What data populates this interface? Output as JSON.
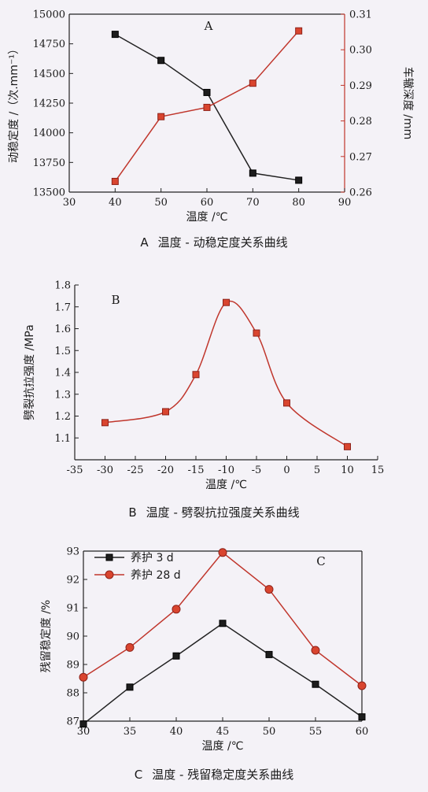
{
  "chart_data": [
    {
      "type": "line",
      "panel_letter": "A",
      "caption": "温度 - 动稳定度关系曲线",
      "xlabel": "温度 /℃",
      "ylabel": "动稳定度 /（次.mm⁻¹）",
      "y2label": "车辙深度 /mm",
      "x": [
        40,
        50,
        60,
        70,
        80
      ],
      "xlim": [
        30,
        90
      ],
      "xticks": [
        "30",
        "40",
        "50",
        "60",
        "70",
        "80",
        "90"
      ],
      "ylim": [
        13500,
        15000
      ],
      "yticks": [
        "13500",
        "13750",
        "14000",
        "14250",
        "14500",
        "14750",
        "15000"
      ],
      "y2lim": [
        0.26,
        0.31
      ],
      "y2ticks": [
        "0.26",
        "0.27",
        "0.28",
        "0.29",
        "0.30",
        "0.31"
      ],
      "series": [
        {
          "axis": "left",
          "color": "#222222",
          "marker": "square",
          "values": [
            14830,
            14610,
            14340,
            13660,
            13600
          ]
        },
        {
          "axis": "right",
          "color": "#c0362c",
          "marker": "square",
          "values": [
            0.263,
            0.2812,
            0.2838,
            0.2906,
            0.3053
          ]
        }
      ]
    },
    {
      "type": "line",
      "panel_letter": "B",
      "caption": "温度 - 劈裂抗拉强度关系曲线",
      "xlabel": "温度 /℃",
      "ylabel": "劈裂抗拉强度 /MPa",
      "x": [
        -30,
        -20,
        -15,
        -10,
        -5,
        0,
        10
      ],
      "xlim": [
        -35,
        15
      ],
      "xticks": [
        "-35",
        "-30",
        "-25",
        "-20",
        "-15",
        "-10",
        "-5",
        "0",
        "5",
        "10",
        "15"
      ],
      "ylim": [
        1.0,
        1.8
      ],
      "yticks": [
        "1.1",
        "1.2",
        "1.3",
        "1.4",
        "1.5",
        "1.6",
        "1.7",
        "1.8"
      ],
      "series": [
        {
          "color": "#c0362c",
          "marker": "square",
          "values": [
            1.17,
            1.22,
            1.39,
            1.72,
            1.58,
            1.26,
            1.06
          ]
        }
      ]
    },
    {
      "type": "line",
      "panel_letter": "C",
      "caption": "温度 - 残留稳定度关系曲线",
      "xlabel": "温度 /℃",
      "ylabel": "残留稳定度 /%",
      "x": [
        30,
        35,
        40,
        45,
        50,
        55,
        60
      ],
      "xlim": [
        30,
        60
      ],
      "xticks": [
        "30",
        "35",
        "40",
        "45",
        "50",
        "55",
        "60"
      ],
      "ylim": [
        87,
        93
      ],
      "yticks": [
        "87",
        "88",
        "89",
        "90",
        "91",
        "92",
        "93"
      ],
      "legend_position": "top-left",
      "series": [
        {
          "name": "养护 3 d",
          "color": "#222222",
          "marker": "square",
          "values": [
            86.9,
            88.2,
            89.3,
            90.45,
            89.35,
            88.3,
            87.15
          ]
        },
        {
          "name": "养护 28 d",
          "color": "#c0362c",
          "marker": "circle",
          "values": [
            88.55,
            89.6,
            90.95,
            92.95,
            91.65,
            89.5,
            88.25
          ]
        }
      ]
    }
  ],
  "captions": {
    "a_letter": "A",
    "a_text": "温度 - 动稳定度关系曲线",
    "b_letter": "B",
    "b_text": "温度 - 劈裂抗拉强度关系曲线",
    "c_letter": "C",
    "c_text": "温度 - 残留稳定度关系曲线"
  }
}
